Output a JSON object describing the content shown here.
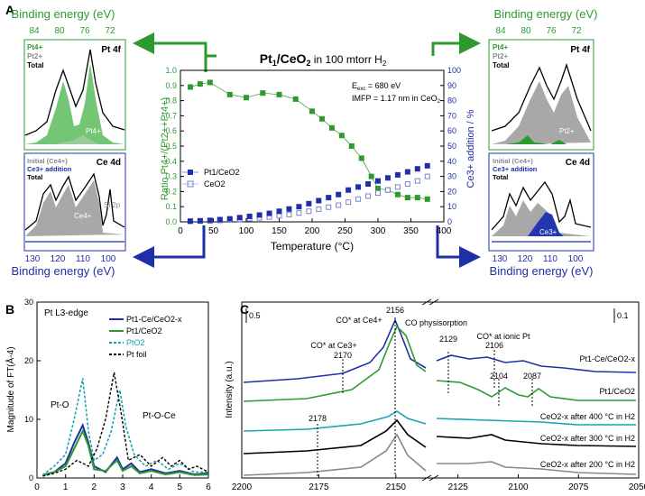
{
  "panels": {
    "A": "A",
    "B": "B",
    "C": "C"
  },
  "colors": {
    "green": "#2e9a2e",
    "blue": "#1f2fa8",
    "teal": "#1aa3b3",
    "gray": "#888888",
    "lightgreen": "#7fd07f"
  },
  "panelA": {
    "title_main": "Pt",
    "title_sub": "1",
    "title_rest": "/CeO",
    "title_sub2": "2",
    "title_tail": " in 100 mtorr H",
    "title_sub3": "2",
    "info_line1": "E",
    "info_line1_sub": "exc",
    "info_line1_rest": " = 680 eV",
    "info_line2": "IMFP = 1.17 nm in CeO",
    "info_line2_sub": "2",
    "ylabel_left": "Ratio Pt4+/(Pt2++Pt4+)",
    "ylabel_right": "Ce3+ addition / %",
    "xlabel": "Temperature (°C)",
    "legend": [
      "Pt1/CeO2",
      "CeO2"
    ],
    "binding_energy_label": "Binding energy (eV)",
    "top_ticks": [
      "84",
      "80",
      "76",
      "72"
    ],
    "bottom_ticks": [
      "130",
      "120",
      "110",
      "100"
    ],
    "left_top_title": "Pt 4f",
    "left_top_legend": [
      "Pt4+",
      "Pt2+",
      "Total"
    ],
    "left_top_peak": "Pt4+",
    "left_bottom_title": "Ce 4d",
    "left_bottom_legend": [
      "Initial (Ce4+)",
      "Ce3+ addition",
      "Total"
    ],
    "left_bottom_peak": "Ce4+",
    "left_bottom_extra": "Si 2p",
    "right_top_title": "Pt 4f",
    "right_top_legend": [
      "Pt4+",
      "Pt2+",
      "Total"
    ],
    "right_top_peak": "Pt2+",
    "right_bottom_title": "Ce 4d",
    "right_bottom_legend": [
      "Initial (Ce4+)",
      "Ce3+ addition",
      "Total"
    ],
    "right_bottom_peak": "Ce3+"
  },
  "panelB": {
    "title": "Pt L3-edge",
    "ylabel": "Magnitude of FT(Å-4)",
    "legend": [
      "Pt1-Ce/CeO2-x",
      "Pt1/CeO2",
      "PtO2",
      "Pt foil"
    ],
    "annot1": "Pt-O",
    "annot2": "Pt-O-Ce"
  },
  "panelC": {
    "ylabel": "Intensity (a.u.)",
    "scale_left": "0.5",
    "scale_right": "0.1",
    "labels": {
      "co_ce4": "CO* at Ce4+",
      "co_ce3": "CO* at Ce3+",
      "co_phys": "CO physisorption",
      "co_pt": "CO* at ionic Pt",
      "v2156": "2156",
      "v2170": "2170",
      "v2178": "2178",
      "v2129": "2129",
      "v2106": "2106",
      "v2104": "2104",
      "v2087": "2087"
    },
    "traces": [
      "Pt1-Ce/CeO2-x",
      "Pt1/CeO2",
      "CeO2-x after 400 °C in H2",
      "CeO2-x after 300 °C in H2",
      "CeO2-x after 200 °C in H2"
    ]
  },
  "chart_data": [
    {
      "type": "scatter",
      "title": "Pt1/CeO2 in 100 mtorr H2",
      "xlabel": "Temperature (°C)",
      "ylabel": "Ratio Pt4+/(Pt2++Pt4+)",
      "ylabel_right": "Ce3+ addition / %",
      "xlim": [
        0,
        400
      ],
      "ylim": [
        0,
        1.0
      ],
      "ylim_right": [
        0,
        100
      ],
      "x_ticks": [
        0,
        50,
        100,
        150,
        200,
        250,
        300,
        350,
        400
      ],
      "y_ticks": [
        0.0,
        0.1,
        0.2,
        0.3,
        0.4,
        0.5,
        0.6,
        0.7,
        0.8,
        0.9,
        1.0
      ],
      "y_ticks_right": [
        0,
        10,
        20,
        30,
        40,
        50,
        60,
        70,
        80,
        90,
        100
      ],
      "ratio": {
        "x": [
          15,
          30,
          45,
          75,
          100,
          125,
          150,
          175,
          200,
          215,
          230,
          245,
          260,
          275,
          290,
          300,
          315,
          330,
          345,
          360,
          375
        ],
        "y": [
          0.89,
          0.91,
          0.92,
          0.84,
          0.82,
          0.85,
          0.84,
          0.81,
          0.73,
          0.68,
          0.62,
          0.57,
          0.5,
          0.42,
          0.3,
          0.22,
          0.21,
          0.18,
          0.16,
          0.16,
          0.15
        ]
      },
      "series": [
        {
          "name": "Pt1/CeO2",
          "x": [
            15,
            30,
            45,
            60,
            75,
            90,
            105,
            120,
            135,
            150,
            165,
            180,
            195,
            210,
            225,
            240,
            255,
            270,
            285,
            300,
            315,
            330,
            345,
            360,
            375
          ],
          "values": [
            0.5,
            0.7,
            1.0,
            1.5,
            2.0,
            2.8,
            3.6,
            4.5,
            5.6,
            7.0,
            8.5,
            10,
            12,
            14,
            16,
            18,
            21,
            23,
            25,
            27,
            29,
            31,
            33,
            35,
            37
          ]
        },
        {
          "name": "CeO2",
          "x": [
            15,
            30,
            45,
            60,
            75,
            90,
            105,
            120,
            135,
            150,
            165,
            180,
            195,
            210,
            225,
            240,
            255,
            270,
            285,
            300,
            315,
            330,
            345,
            360,
            375
          ],
          "values": [
            0.3,
            0.5,
            0.7,
            0.9,
            1.2,
            1.6,
            2.1,
            2.6,
            3.2,
            4.0,
            4.8,
            5.8,
            7.0,
            8.3,
            9.7,
            11,
            13,
            15,
            17,
            19,
            21,
            23,
            25,
            27,
            30
          ]
        }
      ]
    },
    {
      "type": "line",
      "title": "Pt L3-edge",
      "xlabel": "",
      "ylabel": "Magnitude of FT(Å-4)",
      "xlim": [
        0,
        6
      ],
      "ylim": [
        0,
        30
      ],
      "x_ticks": [
        0,
        1,
        2,
        3,
        4,
        5,
        6
      ],
      "y_ticks": [
        0,
        10,
        20,
        30
      ],
      "series": [
        {
          "name": "Pt1-Ce/CeO2-x",
          "x": [
            0.2,
            0.6,
            1.0,
            1.3,
            1.6,
            1.8,
            2.0,
            2.4,
            2.8,
            3.0,
            3.3,
            3.6,
            4.0,
            4.5,
            5.0,
            5.5,
            6.0
          ],
          "values": [
            0.5,
            1,
            2.5,
            6,
            9,
            6,
            2,
            1,
            3.5,
            1.5,
            2.5,
            1,
            1.5,
            0.8,
            1.2,
            0.6,
            0.8
          ]
        },
        {
          "name": "Pt1/CeO2",
          "x": [
            0.2,
            0.6,
            1.0,
            1.3,
            1.6,
            1.8,
            2.0,
            2.4,
            2.8,
            3.0,
            3.3,
            3.6,
            4.0,
            4.5,
            5.0,
            5.5,
            6.0
          ],
          "values": [
            0.4,
            1,
            2,
            5,
            8,
            5.5,
            1.5,
            1.2,
            3,
            1.2,
            2,
            0.8,
            1.2,
            0.6,
            1,
            0.5,
            0.6
          ]
        },
        {
          "name": "PtO2",
          "x": [
            0.2,
            0.6,
            1.0,
            1.3,
            1.6,
            1.8,
            2.0,
            2.3,
            2.6,
            2.9,
            3.1,
            3.4,
            3.8,
            4.2,
            4.6,
            5.0,
            5.5,
            6.0
          ],
          "values": [
            0.5,
            2,
            4,
            10,
            17,
            8,
            3,
            4,
            8,
            15,
            9,
            4,
            2,
            3,
            1.5,
            2.5,
            1,
            1
          ]
        },
        {
          "name": "Pt foil",
          "x": [
            0.2,
            0.6,
            1.0,
            1.4,
            1.8,
            2.1,
            2.4,
            2.7,
            2.95,
            3.2,
            3.6,
            4.0,
            4.4,
            4.7,
            5.0,
            5.3,
            5.6,
            6.0
          ],
          "values": [
            0.3,
            0.8,
            1.5,
            3,
            2,
            5,
            10,
            18,
            11,
            3,
            4,
            2,
            3.5,
            2,
            3,
            1.5,
            2,
            1
          ]
        }
      ]
    },
    {
      "type": "line",
      "title": "",
      "xlabel": "",
      "ylabel": "Intensity (a.u.)",
      "xlim": [
        2200,
        2050
      ],
      "x_ticks": [
        2200,
        2175,
        2150,
        2125,
        2100,
        2075,
        2050
      ],
      "axis_break": [
        2140,
        2135
      ],
      "series": [
        {
          "name": "Pt1-Ce/CeO2-x"
        },
        {
          "name": "Pt1/CeO2"
        },
        {
          "name": "CeO2-x after 400 °C in H2"
        },
        {
          "name": "CeO2-x after 300 °C in H2"
        },
        {
          "name": "CeO2-x after 200 °C in H2"
        }
      ],
      "peaks": [
        2156,
        2170,
        2178,
        2129,
        2106,
        2104,
        2087
      ]
    }
  ]
}
